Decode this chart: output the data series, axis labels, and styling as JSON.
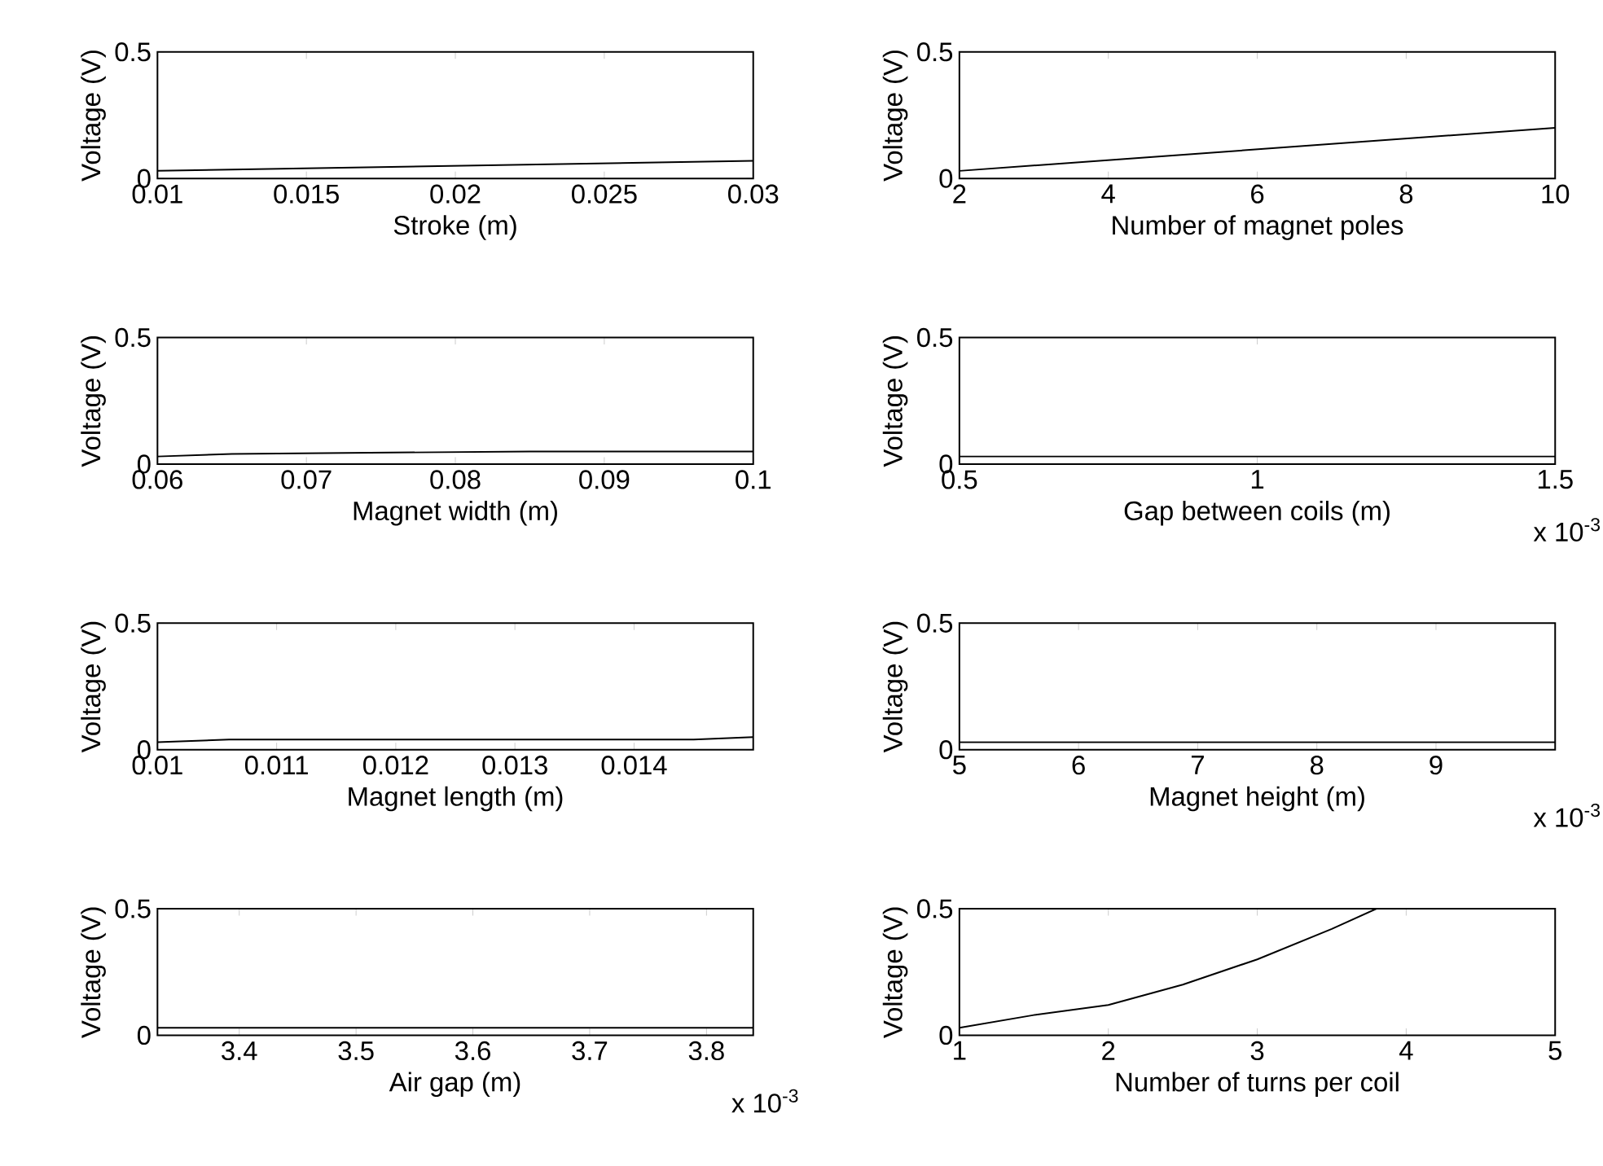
{
  "chart_data": [
    {
      "type": "line",
      "xlabel": "Stroke (m)",
      "ylabel": "Voltage (V)",
      "color": "#000000",
      "x": [
        0.01,
        0.02,
        0.03
      ],
      "values": [
        0.03,
        0.05,
        0.07
      ],
      "xlim": [
        0.01,
        0.03
      ],
      "ylim": [
        0,
        0.5
      ],
      "xticks": [
        0.01,
        0.015,
        0.02,
        0.025,
        0.03
      ],
      "yticks": [
        0,
        0.5
      ]
    },
    {
      "type": "line",
      "xlabel": "Number of magnet poles",
      "ylabel": "Voltage (V)",
      "color": "#000000",
      "x": [
        2,
        10
      ],
      "values": [
        0.03,
        0.2
      ],
      "xlim": [
        2,
        10
      ],
      "ylim": [
        0,
        0.5
      ],
      "xticks": [
        2,
        4,
        6,
        8,
        10
      ],
      "yticks": [
        0,
        0.5
      ]
    },
    {
      "type": "line",
      "xlabel": "Magnet width (m)",
      "ylabel": "Voltage (V)",
      "color": "#000000",
      "x": [
        0.06,
        0.065,
        0.085,
        0.1
      ],
      "values": [
        0.03,
        0.04,
        0.05,
        0.05
      ],
      "xlim": [
        0.06,
        0.1
      ],
      "ylim": [
        0,
        0.5
      ],
      "xticks": [
        0.06,
        0.07,
        0.08,
        0.09,
        0.1
      ],
      "yticks": [
        0,
        0.5
      ]
    },
    {
      "type": "line",
      "xlabel": "Gap between coils (m)",
      "ylabel": "Voltage (V)",
      "color": "#000000",
      "annotations": [
        "x 10$^{-3}$"
      ],
      "x": [
        0.5,
        1.5
      ],
      "values": [
        0.03,
        0.03
      ],
      "xlim": [
        0.5,
        1.5
      ],
      "ylim": [
        0,
        0.5
      ],
      "xticks": [
        0.5,
        1,
        1.5
      ],
      "yticks": [
        0,
        0.5
      ]
    },
    {
      "type": "line",
      "xlabel": "Magnet length (m)",
      "ylabel": "Voltage (V)",
      "color": "#000000",
      "x": [
        0.01,
        0.0106,
        0.0145,
        0.015
      ],
      "values": [
        0.03,
        0.04,
        0.04,
        0.05
      ],
      "xlim": [
        0.01,
        0.015
      ],
      "ylim": [
        0,
        0.5
      ],
      "xticks": [
        0.01,
        0.011,
        0.012,
        0.013,
        0.014
      ],
      "yticks": [
        0,
        0.5
      ]
    },
    {
      "type": "line",
      "xlabel": "Magnet height (m)",
      "ylabel": "Voltage (V)",
      "color": "#000000",
      "annotations": [
        "x 10$^{-3}$"
      ],
      "x": [
        5,
        10
      ],
      "values": [
        0.03,
        0.03
      ],
      "xlim": [
        5,
        10
      ],
      "ylim": [
        0,
        0.5
      ],
      "xticks": [
        5,
        6,
        7,
        8,
        9
      ],
      "yticks": [
        0,
        0.5
      ]
    },
    {
      "type": "line",
      "xlabel": "Air gap (m)",
      "ylabel": "Voltage (V)",
      "color": "#000000",
      "annotations": [
        "x 10$^{-3}$"
      ],
      "x": [
        3.33,
        3.84
      ],
      "values": [
        0.03,
        0.03
      ],
      "xlim": [
        3.33,
        3.84
      ],
      "ylim": [
        0,
        0.5
      ],
      "xticks": [
        3.4,
        3.5,
        3.6,
        3.7,
        3.8
      ],
      "yticks": [
        0,
        0.5
      ]
    },
    {
      "type": "line",
      "xlabel": "Number of turns per coil",
      "ylabel": "Voltage (V)",
      "color": "#000000",
      "x": [
        1,
        1.5,
        2,
        2.5,
        3,
        3.5,
        3.8
      ],
      "values": [
        0.03,
        0.08,
        0.12,
        0.2,
        0.3,
        0.42,
        0.5
      ],
      "xlim": [
        1,
        5
      ],
      "ylim": [
        0,
        0.5
      ],
      "xticks": [
        1,
        2,
        3,
        4,
        5
      ],
      "yticks": [
        0,
        0.5
      ]
    }
  ]
}
